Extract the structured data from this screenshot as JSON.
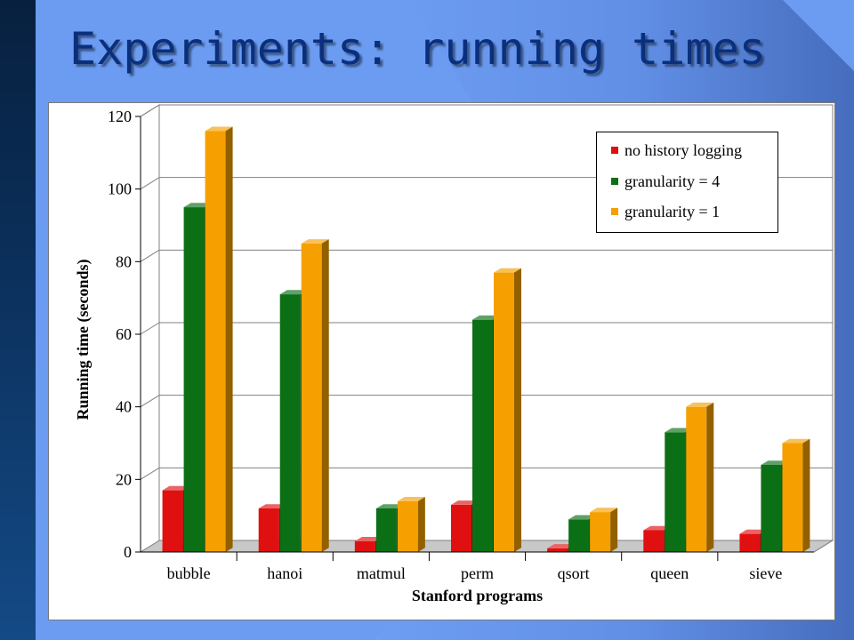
{
  "slide": {
    "title": "Experiments: running times",
    "colors": {
      "background": "#6b9cf2",
      "title": "#0a2f7d"
    }
  },
  "chart_data": {
    "type": "bar",
    "title": "",
    "xlabel": "Stanford programs",
    "ylabel": "Running time (seconds)",
    "ylim": [
      0,
      120
    ],
    "yticks": [
      "0",
      "20",
      "40",
      "60",
      "80",
      "100",
      "120"
    ],
    "grid": true,
    "legend_position": "top-right",
    "categories": [
      "bubble",
      "hanoi",
      "matmul",
      "perm",
      "qsort",
      "queen",
      "sieve"
    ],
    "series": [
      {
        "name": "no history logging",
        "color": "#e01010",
        "values": [
          17,
          12,
          3,
          13,
          1,
          6,
          5
        ]
      },
      {
        "name": "granularity = 4",
        "color": "#0b6f16",
        "values": [
          95,
          71,
          12,
          64,
          9,
          33,
          24
        ]
      },
      {
        "name": "granularity = 1",
        "color": "#f5a000",
        "values": [
          116,
          85,
          14,
          77,
          11,
          40,
          30
        ]
      }
    ]
  }
}
